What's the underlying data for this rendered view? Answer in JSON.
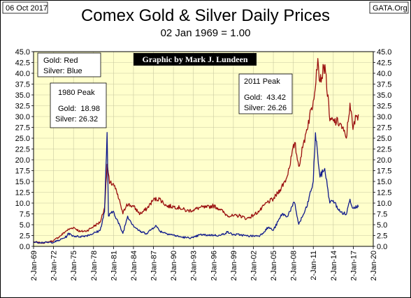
{
  "header": {
    "date": "06 Oct 2017",
    "source": "GATA.Org",
    "title": "Comex Gold & Silver Daily Prices",
    "subtitle": "02 Jan 1969 = 1.00"
  },
  "credit": "Graphic by Mark J. Lundeen",
  "legend_box": {
    "line1": "Gold: Red",
    "line2": "Silver: Blue"
  },
  "peak_1980": {
    "title": "1980 Peak",
    "gold": "Gold:  18.98",
    "silver": "Silver: 26.32"
  },
  "peak_2011": {
    "title": "2011 Peak",
    "gold": "Gold:  43.42",
    "silver": "Silver: 26.26"
  },
  "colors": {
    "gold": "#9b1010",
    "silver": "#101a8c",
    "plot_bg": "#ffffcc",
    "grid": "#c8c8a0"
  },
  "chart_data": {
    "type": "line",
    "x_axis": "dates",
    "xlim": [
      "1969-01-02",
      "2020-01-02"
    ],
    "ylim": [
      0,
      45
    ],
    "y_ticks": [
      "0.0",
      "2.5",
      "5.0",
      "7.5",
      "10.0",
      "12.5",
      "15.0",
      "17.5",
      "20.0",
      "22.5",
      "25.0",
      "27.5",
      "30.0",
      "32.5",
      "35.0",
      "37.5",
      "40.0",
      "42.5",
      "45.0"
    ],
    "x_ticks": [
      "2-Jan-69",
      "2-Jan-72",
      "2-Jan-75",
      "2-Jan-78",
      "2-Jan-81",
      "2-Jan-84",
      "2-Jan-87",
      "2-Jan-90",
      "2-Jan-93",
      "2-Jan-96",
      "2-Jan-99",
      "2-Jan-02",
      "2-Jan-05",
      "2-Jan-08",
      "2-Jan-11",
      "2-Jan-14",
      "2-Jan-17",
      "2-Jan-20"
    ],
    "grid": true,
    "series": [
      {
        "name": "Gold",
        "x": [
          "1969-01-02",
          "1970-01-02",
          "1971-01-02",
          "1972-01-02",
          "1973-01-02",
          "1974-01-02",
          "1975-01-02",
          "1976-01-02",
          "1977-01-02",
          "1978-01-02",
          "1979-01-02",
          "1979-09-01",
          "1980-01-21",
          "1980-06-01",
          "1981-01-02",
          "1982-01-02",
          "1982-06-01",
          "1983-01-02",
          "1984-01-02",
          "1985-01-02",
          "1986-01-02",
          "1987-01-02",
          "1987-12-01",
          "1989-01-02",
          "1990-01-02",
          "1991-01-02",
          "1992-01-02",
          "1993-01-02",
          "1994-01-02",
          "1995-01-02",
          "1996-01-02",
          "1997-01-02",
          "1998-01-02",
          "1999-01-02",
          "2000-01-02",
          "2001-01-02",
          "2002-01-02",
          "2003-01-02",
          "2004-01-02",
          "2005-01-02",
          "2006-01-02",
          "2007-01-02",
          "2008-03-17",
          "2008-10-24",
          "2009-06-01",
          "2010-01-02",
          "2011-01-02",
          "2011-09-06",
          "2012-01-02",
          "2012-10-01",
          "2013-06-28",
          "2014-01-02",
          "2015-01-02",
          "2015-12-17",
          "2016-07-06",
          "2016-12-15",
          "2017-06-01",
          "2017-10-06"
        ],
        "values": [
          1.0,
          0.8,
          0.92,
          1.3,
          2.4,
          3.7,
          4.4,
          3.4,
          3.6,
          4.6,
          5.6,
          9.0,
          18.98,
          14.5,
          14.5,
          10.0,
          7.5,
          9.8,
          9.2,
          7.5,
          8.7,
          10.8,
          11.0,
          9.3,
          9.2,
          8.9,
          8.2,
          8.4,
          9.0,
          9.0,
          9.4,
          8.6,
          7.2,
          7.0,
          7.1,
          6.4,
          7.2,
          8.3,
          10.1,
          10.9,
          13.1,
          15.8,
          24.0,
          18.5,
          22.8,
          27.0,
          33.7,
          43.42,
          38.0,
          42.0,
          29.0,
          29.0,
          28.5,
          25.0,
          33.1,
          27.0,
          30.0,
          30.5
        ]
      },
      {
        "name": "Silver",
        "x": [
          "1969-01-02",
          "1970-01-02",
          "1971-01-02",
          "1972-01-02",
          "1973-01-02",
          "1974-01-02",
          "1974-03-01",
          "1975-01-02",
          "1976-01-02",
          "1977-01-02",
          "1978-01-02",
          "1979-01-02",
          "1979-09-01",
          "1980-01-18",
          "1980-04-01",
          "1981-01-02",
          "1982-06-01",
          "1983-02-15",
          "1984-01-02",
          "1985-01-02",
          "1986-01-02",
          "1987-04-27",
          "1988-01-02",
          "1989-01-02",
          "1990-01-02",
          "1991-01-02",
          "1992-01-02",
          "1993-01-02",
          "1994-01-02",
          "1995-01-02",
          "1996-01-02",
          "1997-01-02",
          "1998-02-05",
          "1999-01-02",
          "2000-01-02",
          "2001-01-02",
          "2002-01-02",
          "2003-01-02",
          "2004-04-01",
          "2005-01-02",
          "2006-05-11",
          "2007-01-02",
          "2008-03-05",
          "2008-10-24",
          "2009-06-01",
          "2010-01-02",
          "2011-01-02",
          "2011-04-28",
          "2011-09-01",
          "2012-01-02",
          "2012-09-20",
          "2013-06-28",
          "2014-01-02",
          "2015-01-02",
          "2015-12-17",
          "2016-07-06",
          "2016-12-15",
          "2017-06-01",
          "2017-10-06"
        ],
        "values": [
          1.0,
          0.9,
          0.9,
          0.95,
          1.5,
          2.3,
          3.0,
          2.4,
          2.25,
          2.5,
          3.0,
          3.7,
          8.0,
          26.32,
          7.0,
          8.1,
          3.0,
          7.0,
          4.8,
          3.4,
          3.0,
          4.8,
          3.5,
          3.0,
          2.6,
          2.2,
          2.0,
          2.0,
          2.7,
          2.6,
          2.6,
          2.5,
          3.3,
          2.7,
          2.7,
          2.4,
          2.4,
          2.5,
          4.4,
          3.7,
          7.6,
          6.8,
          10.1,
          5.1,
          7.0,
          9.0,
          15.0,
          26.26,
          21.0,
          16.0,
          18.0,
          10.0,
          10.6,
          8.0,
          7.4,
          10.9,
          8.8,
          9.4,
          9.1
        ]
      }
    ]
  }
}
